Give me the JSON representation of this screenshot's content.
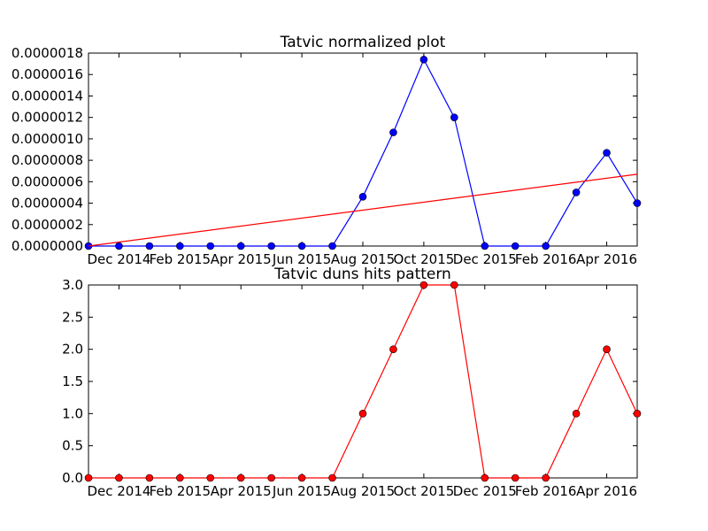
{
  "chart_data": [
    {
      "type": "line",
      "title": "Tatvic normalized plot",
      "xlabel": "",
      "ylabel": "",
      "x": [
        "2014-11",
        "2014-12",
        "2015-01",
        "2015-02",
        "2015-03",
        "2015-04",
        "2015-05",
        "2015-06",
        "2015-07",
        "2015-08",
        "2015-09",
        "2015-10",
        "2015-11",
        "2015-12",
        "2016-01",
        "2016-02",
        "2016-03",
        "2016-04",
        "2016-05"
      ],
      "series": [
        {
          "color": "#0000ff",
          "marker": "circle",
          "values": [
            0,
            0,
            0,
            0,
            0,
            0,
            0,
            0,
            0,
            4.6e-07,
            1.06e-06,
            1.74e-06,
            1.2e-06,
            0,
            0,
            0,
            5e-07,
            8.7e-07,
            4e-07
          ]
        },
        {
          "color": "#ff0000",
          "marker": "none",
          "trend_line": true,
          "values_endpoints": [
            0,
            6.7e-07
          ]
        }
      ],
      "yticks": [
        "0.0000000",
        "0.0000002",
        "0.0000004",
        "0.0000006",
        "0.0000008",
        "0.0000010",
        "0.0000012",
        "0.0000014",
        "0.0000016",
        "0.0000018"
      ],
      "xticks": [
        "Dec 2014",
        "Feb 2015",
        "Apr 2015",
        "Jun 2015",
        "Aug 2015",
        "Oct 2015",
        "Dec 2015",
        "Feb 2016",
        "Apr 2016"
      ],
      "ylim": [
        0,
        1.8e-06
      ],
      "grid": false
    },
    {
      "type": "line",
      "title": "Tatvic duns hits pattern",
      "xlabel": "",
      "ylabel": "",
      "x": [
        "2014-11",
        "2014-12",
        "2015-01",
        "2015-02",
        "2015-03",
        "2015-04",
        "2015-05",
        "2015-06",
        "2015-07",
        "2015-08",
        "2015-09",
        "2015-10",
        "2015-11",
        "2015-12",
        "2016-01",
        "2016-02",
        "2016-03",
        "2016-04",
        "2016-05"
      ],
      "series": [
        {
          "color": "#ff0000",
          "marker": "circle",
          "values": [
            0,
            0,
            0,
            0,
            0,
            0,
            0,
            0,
            0,
            1,
            2,
            3,
            3,
            0,
            0,
            0,
            1,
            2,
            1
          ]
        }
      ],
      "yticks": [
        "0.0",
        "0.5",
        "1.0",
        "1.5",
        "2.0",
        "2.5",
        "3.0"
      ],
      "xticks": [
        "Dec 2014",
        "Feb 2015",
        "Apr 2015",
        "Jun 2015",
        "Aug 2015",
        "Oct 2015",
        "Dec 2015",
        "Feb 2016",
        "Apr 2016"
      ],
      "ylim": [
        0,
        3
      ],
      "grid": false
    }
  ]
}
